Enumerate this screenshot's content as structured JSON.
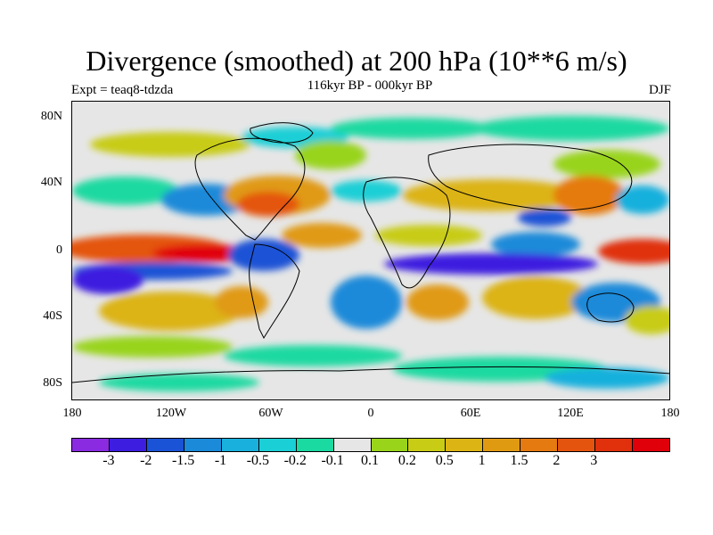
{
  "title": "Divergence (smoothed) at 200 hPa (10**6 m/s)",
  "subtitle": "116kyr BP - 000kyr BP",
  "experiment_label": "Expt = teaq8-tdzda",
  "season_label": "DJF",
  "map": {
    "lat_ticks": [
      "80N",
      "40N",
      "0",
      "40S",
      "80S"
    ],
    "lon_ticks": [
      "180",
      "120W",
      "60W",
      "0",
      "60E",
      "120E",
      "180"
    ],
    "background_color": "#e6e6e6"
  },
  "colorbar": {
    "colors": [
      "#8a2be2",
      "#3d1de0",
      "#1a53d6",
      "#1a8ad9",
      "#19b0dd",
      "#1bcfd6",
      "#1ad9a1",
      "#e6e6e6",
      "#99d41a",
      "#c8cc14",
      "#dcb414",
      "#e09a12",
      "#e57a10",
      "#e4540e",
      "#e0300c",
      "#e0000a"
    ],
    "labels": [
      "-3",
      "-2",
      "-1.5",
      "-1",
      "-0.5",
      "-0.2",
      "-0.1",
      "0.1",
      "0.2",
      "0.5",
      "1",
      "1.5",
      "2",
      "3"
    ]
  }
}
